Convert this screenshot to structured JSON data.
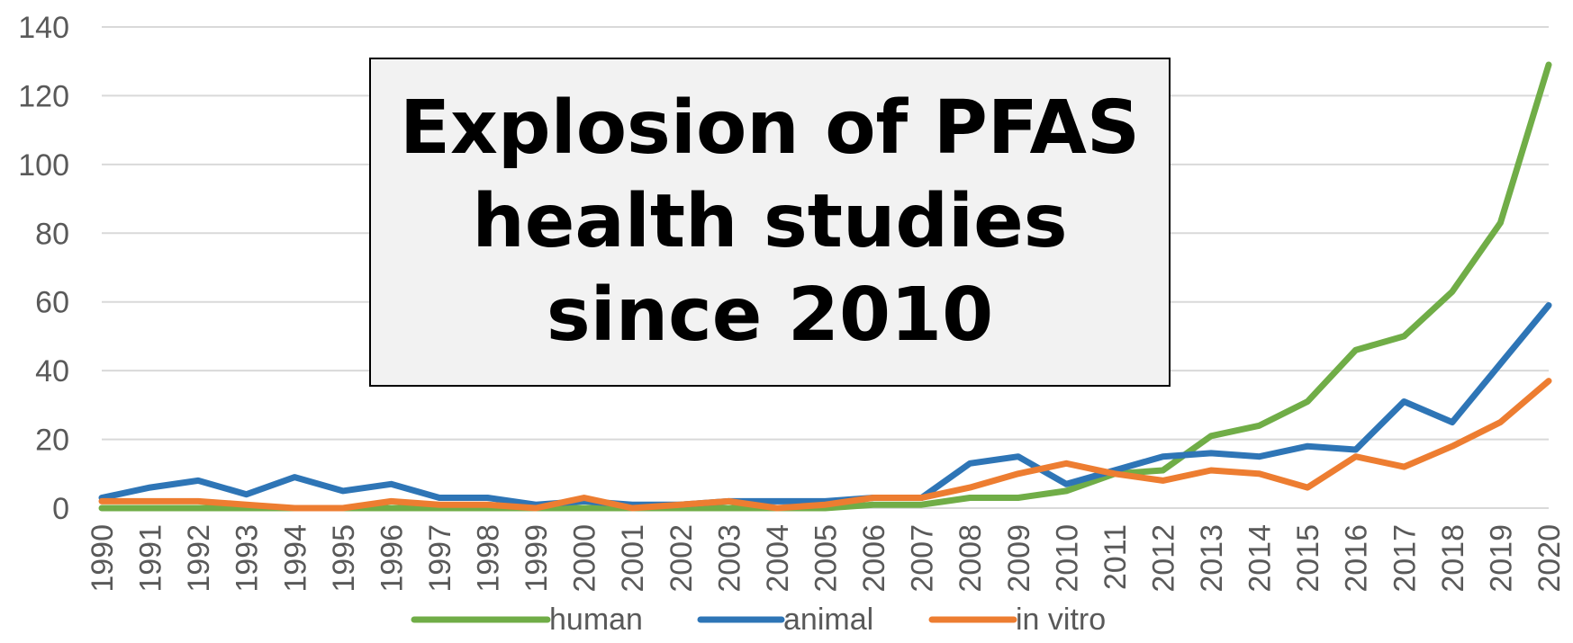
{
  "chart_data": {
    "type": "line",
    "title_lines": [
      "Explosion of PFAS",
      "health studies",
      "since 2010"
    ],
    "xlabel": "",
    "ylabel": "",
    "ylim": [
      0,
      140
    ],
    "yticks": [
      0,
      20,
      40,
      60,
      80,
      100,
      120,
      140
    ],
    "x": [
      "1990",
      "1991",
      "1992",
      "1993",
      "1994",
      "1995",
      "1996",
      "1997",
      "1998",
      "1999",
      "2000",
      "2001",
      "2002",
      "2003",
      "2004",
      "2005",
      "2006",
      "2007",
      "2008",
      "2009",
      "2010",
      "2011",
      "2012",
      "2013",
      "2014",
      "2015",
      "2016",
      "2017",
      "2018",
      "2019",
      "2020"
    ],
    "series": [
      {
        "name": "human",
        "color": "#70ad47",
        "values": [
          0,
          0,
          0,
          0,
          0,
          0,
          0,
          0,
          0,
          0,
          0,
          0,
          0,
          0,
          0,
          0,
          1,
          1,
          3,
          3,
          5,
          10,
          11,
          21,
          24,
          31,
          46,
          50,
          63,
          83,
          129
        ]
      },
      {
        "name": "animal",
        "color": "#2e75b6",
        "values": [
          3,
          6,
          8,
          4,
          9,
          5,
          7,
          3,
          3,
          1,
          2,
          1,
          1,
          2,
          2,
          2,
          3,
          3,
          13,
          15,
          7,
          11,
          15,
          16,
          15,
          18,
          17,
          31,
          25,
          42,
          59
        ]
      },
      {
        "name": "in vitro",
        "color": "#ed7d31",
        "values": [
          2,
          2,
          2,
          1,
          0,
          0,
          2,
          1,
          1,
          0,
          3,
          0,
          1,
          2,
          0,
          1,
          3,
          3,
          6,
          10,
          13,
          10,
          8,
          11,
          10,
          6,
          15,
          12,
          18,
          25,
          37
        ]
      }
    ],
    "grid": true,
    "legend_position": "bottom"
  }
}
